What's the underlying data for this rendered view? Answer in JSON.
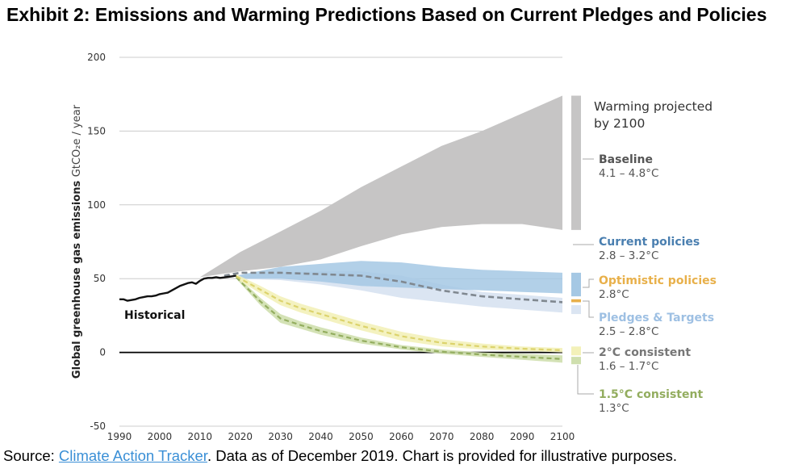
{
  "header": {
    "title": "Exhibit 2: Emissions and Warming Predictions Based on Current Pledges and Policies"
  },
  "footer": {
    "prefix": "Source: ",
    "link_text": "Climate Action Tracker",
    "suffix": ".  Data as of December 2019.  Chart is provided for illustrative purposes."
  },
  "colors": {
    "baseline": "#c6c5c5",
    "current": "#a5c8e4",
    "current_label": "#4a7fb0",
    "pledges": "#dbe5f2",
    "pledges_label": "#9ec0e3",
    "optimistic": "#e8b04a",
    "two_deg": "#f3f1b9",
    "two_deg_line": "#dcd36c",
    "one_five": "#cfdfae",
    "one_five_line": "#93ad5f",
    "historical": "#111111",
    "axis_text": "#333333",
    "grid": "#cccccc"
  },
  "chart_data": {
    "type": "area",
    "title": "Exhibit 2: Emissions and Warming Predictions Based on Current Pledges and Policies",
    "ylabel": "Global greenhouse gas emissions",
    "ylabel_unit": "GtCO₂e / year",
    "xlabel": "",
    "xlim": [
      1990,
      2100
    ],
    "ylim": [
      -50,
      200
    ],
    "x_ticks": [
      1990,
      2000,
      2010,
      2020,
      2030,
      2040,
      2050,
      2060,
      2070,
      2080,
      2090,
      2100
    ],
    "y_ticks": [
      -50,
      0,
      50,
      100,
      150,
      200
    ],
    "grid": true,
    "legend_heading": "Warming projected by 2100",
    "historical": {
      "name": "Historical",
      "x": [
        1990,
        1991,
        1992,
        1993,
        1994,
        1995,
        1996,
        1997,
        1998,
        1999,
        2000,
        2001,
        2002,
        2003,
        2004,
        2005,
        2006,
        2007,
        2008,
        2009,
        2010,
        2011,
        2012,
        2013,
        2014,
        2015,
        2016,
        2017,
        2018,
        2019
      ],
      "y": [
        36,
        36,
        35,
        35.5,
        36,
        37,
        37.5,
        38,
        38,
        38.5,
        39.5,
        40,
        40.5,
        42,
        43.5,
        45,
        46,
        47,
        47.5,
        46.5,
        48.5,
        50,
        50.5,
        50.5,
        51,
        50.5,
        50.8,
        51.2,
        51.6,
        52
      ]
    },
    "series": [
      {
        "name": "Baseline",
        "range": "4.1 – 4.8°C",
        "x": [
          2010,
          2020,
          2030,
          2040,
          2050,
          2060,
          2070,
          2080,
          2090,
          2100
        ],
        "lower": [
          51,
          55,
          58,
          63,
          72,
          80,
          85,
          87,
          87,
          83
        ],
        "upper": [
          51,
          68,
          82,
          96,
          112,
          126,
          140,
          150,
          162,
          174
        ]
      },
      {
        "name": "Current policies",
        "range": "2.8 – 3.2°C",
        "x": [
          2019,
          2030,
          2040,
          2050,
          2060,
          2070,
          2080,
          2090,
          2100
        ],
        "lower": [
          50,
          50,
          48,
          45,
          44,
          43,
          42,
          41,
          40
        ],
        "upper": [
          52,
          58,
          60,
          62,
          61,
          58,
          56,
          55,
          54
        ]
      },
      {
        "name": "Optimistic policies",
        "range": "2.8°C",
        "x": [
          2016,
          2020,
          2030,
          2040,
          2050,
          2060,
          2070,
          2080,
          2090,
          2100
        ],
        "y": [
          52,
          54,
          54,
          53,
          52,
          48,
          42,
          38,
          36,
          34
        ]
      },
      {
        "name": "Pledges & Targets",
        "range": "2.5 – 2.8°C",
        "x": [
          2019,
          2030,
          2040,
          2050,
          2060,
          2070,
          2080,
          2090,
          2100
        ],
        "lower": [
          50,
          49,
          46,
          42,
          37,
          34,
          31,
          29,
          27
        ],
        "upper": [
          52,
          54,
          55,
          55,
          52,
          46,
          41,
          39,
          37
        ],
        "mid": [
          51,
          53,
          53,
          52,
          47,
          41,
          37,
          35,
          33
        ]
      },
      {
        "name": "2°C consistent",
        "range": "1.6 – 1.7°C",
        "x": [
          2019,
          2025,
          2030,
          2035,
          2040,
          2050,
          2060,
          2070,
          2080,
          2090,
          2100
        ],
        "lower": [
          50,
          40,
          32,
          27,
          23,
          15,
          8,
          4,
          2,
          1,
          0
        ],
        "upper": [
          53,
          45,
          38,
          33,
          29,
          21,
          14,
          9,
          6,
          4,
          3
        ],
        "mid": [
          51.5,
          42.5,
          35,
          30,
          26,
          18,
          11,
          6.5,
          4,
          2.5,
          1.5
        ]
      },
      {
        "name": "1.5°C consistent",
        "range": "1.3°C",
        "x": [
          2019,
          2025,
          2030,
          2035,
          2040,
          2050,
          2060,
          2070,
          2080,
          2090,
          2100
        ],
        "lower": [
          50,
          32,
          20,
          16,
          12,
          6,
          2,
          -1,
          -3,
          -5,
          -7
        ],
        "upper": [
          52,
          37,
          26,
          21,
          17,
          10,
          5,
          2,
          0,
          -1,
          -2
        ],
        "mid": [
          51,
          34.5,
          23,
          18.5,
          14.5,
          8,
          3.5,
          0.5,
          -1.5,
          -3,
          -4.5
        ]
      }
    ]
  }
}
